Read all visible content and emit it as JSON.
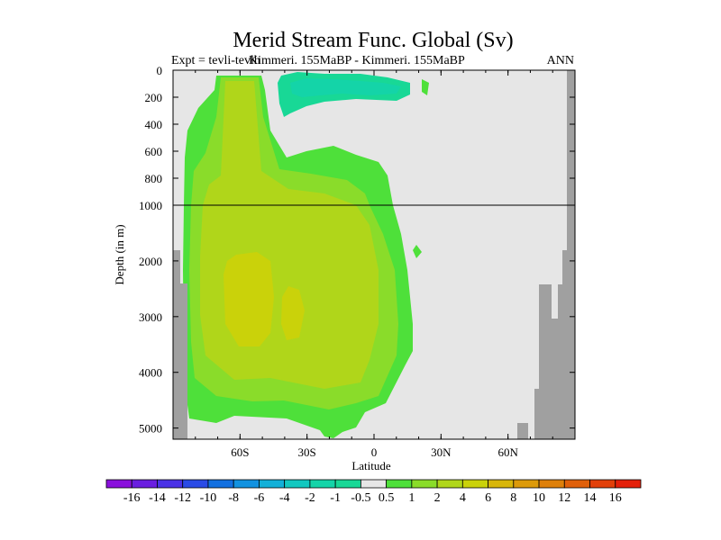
{
  "chart_data": {
    "type": "contour",
    "title": "Merid Stream Func. Global (Sv)",
    "subtitle_left": "Expt = tevli-tevlh",
    "subtitle_mid": "Kimmeri. 155MaBP - Kimmeri. 155MaBP",
    "subtitle_right": "ANN",
    "xlabel": "Latitude",
    "ylabel": "Depth (in m)",
    "xlim": [
      -90,
      90
    ],
    "x_ticks": [
      {
        "value": -60,
        "label": "60S"
      },
      {
        "value": -30,
        "label": "30S"
      },
      {
        "value": 0,
        "label": "0"
      },
      {
        "value": 30,
        "label": "30N"
      },
      {
        "value": 60,
        "label": "60N"
      }
    ],
    "y_upper": {
      "range": [
        0,
        1000
      ],
      "ticks": [
        "0",
        "200",
        "400",
        "600",
        "800",
        "1000"
      ]
    },
    "y_lower": {
      "range": [
        1000,
        5200
      ],
      "ticks": [
        "2000",
        "3000",
        "4000",
        "5000"
      ]
    },
    "colorbar": {
      "levels": [
        "-16",
        "-14",
        "-12",
        "-10",
        "-8",
        "-6",
        "-4",
        "-2",
        "-1",
        "-0.5",
        "0.5",
        "1",
        "2",
        "4",
        "6",
        "8",
        "10",
        "12",
        "14",
        "16"
      ],
      "colors": [
        "#8a10dc",
        "#6a1ee0",
        "#4a32e6",
        "#2a4be6",
        "#1270e0",
        "#1292e0",
        "#12b0d8",
        "#12c8c0",
        "#14d4a8",
        "#18d896",
        "#e6e6e6",
        "#4ee03a",
        "#8adc2a",
        "#b0d61a",
        "#cad20a",
        "#d8b60a",
        "#dc9a0a",
        "#de800a",
        "#e0600a",
        "#e2400a",
        "#e4200a"
      ]
    },
    "regions": {
      "background": "#e6e6e6",
      "land": "#a0a0a0",
      "level_0.5_1": "#4ee03a",
      "level_1_2": "#8adc2a",
      "level_2_4": "#b0d61a",
      "level_4_6": "#cad20a",
      "level_neg1_neg0.5": "#18d896",
      "level_neg2_neg1": "#14d4a8"
    }
  }
}
